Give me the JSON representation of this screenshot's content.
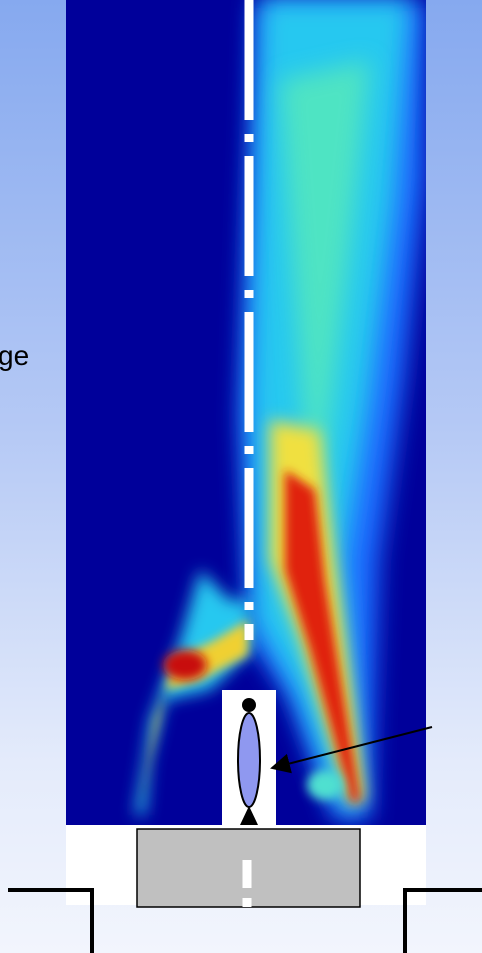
{
  "slide": {
    "label_fragment": "ge"
  }
}
